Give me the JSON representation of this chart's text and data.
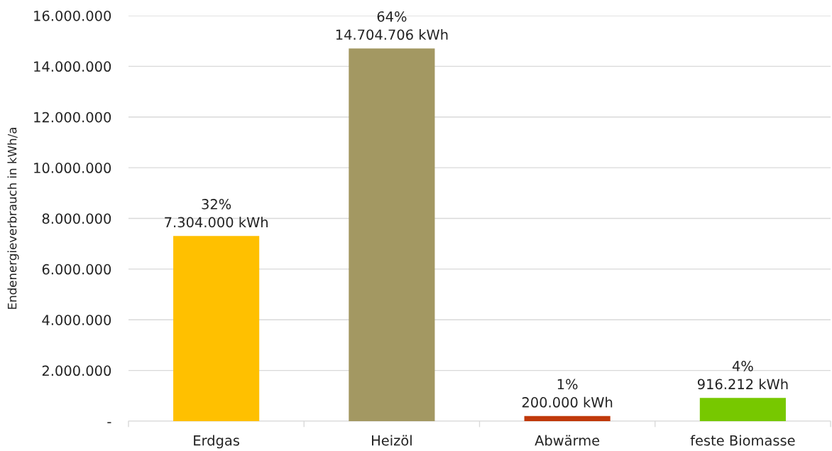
{
  "chart_data": {
    "type": "bar",
    "ylabel": "Endenergieverbrauch in kWh/a",
    "categories": [
      "Erdgas",
      "Heizöl",
      "Abwärme",
      "feste Biomasse"
    ],
    "values": [
      7304000,
      14704706,
      200000,
      916212
    ],
    "colors": [
      "#ffc000",
      "#a39862",
      "#c0390b",
      "#77c800"
    ],
    "value_labels": [
      "32%\n7.304.000 kWh",
      "64%\n14.704.706 kWh",
      "1%\n200.000 kWh",
      "4%\n916.212 kWh"
    ],
    "ylim": [
      0,
      16000000
    ],
    "yticks": [
      {
        "value": 0,
        "label": "-"
      },
      {
        "value": 2000000,
        "label": "2.000.000"
      },
      {
        "value": 4000000,
        "label": "4.000.000"
      },
      {
        "value": 6000000,
        "label": "6.000.000"
      },
      {
        "value": 8000000,
        "label": "8.000.000"
      },
      {
        "value": 10000000,
        "label": "10.000.000"
      },
      {
        "value": 12000000,
        "label": "12.000.000"
      },
      {
        "value": 14000000,
        "label": "14.000.000"
      },
      {
        "value": 16000000,
        "label": "16.000.000"
      }
    ],
    "grid": "y"
  }
}
